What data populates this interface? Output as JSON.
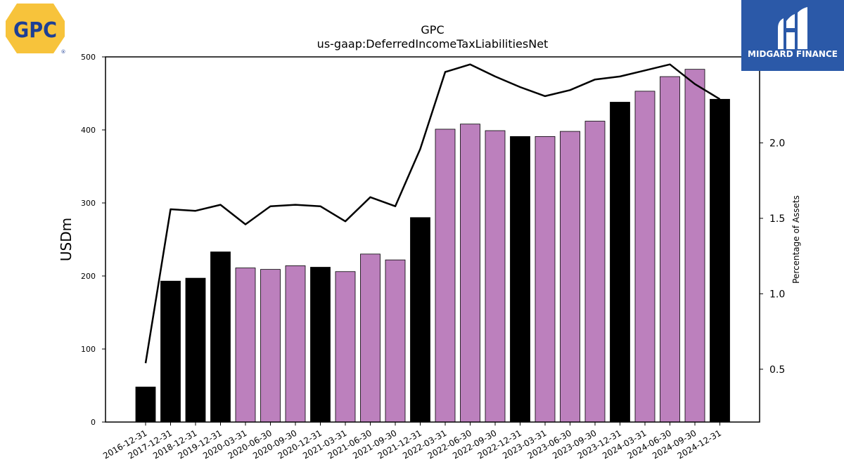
{
  "logos": {
    "company": {
      "text": "GPC",
      "registered": "®",
      "bg": "#f7c33b",
      "fg": "#1d3f95"
    },
    "brand": {
      "text": "MIDGARD FINANCE",
      "bg": "#2b59a8",
      "fg": "#ffffff"
    }
  },
  "chart_data": {
    "type": "bar",
    "title": "GPC",
    "subtitle": "us-gaap:DeferredIncomeTaxLiabilitiesNet",
    "ylabel": "USDm",
    "y2label": "Percentage of Assets",
    "ylim": [
      0,
      500
    ],
    "y2lim": [
      0.15,
      2.57
    ],
    "yticks": [
      0,
      100,
      200,
      300,
      400,
      500
    ],
    "y2ticks": [
      0.5,
      1.0,
      1.5,
      2.0,
      2.5
    ],
    "grid": false,
    "colors": {
      "annual": "#000000",
      "quarterly": "#bc80bd",
      "line": "#000000"
    },
    "categories": [
      "2016-12-31",
      "2017-12-31",
      "2018-12-31",
      "2019-12-31",
      "2020-03-31",
      "2020-06-30",
      "2020-09-30",
      "2020-12-31",
      "2021-03-31",
      "2021-06-30",
      "2021-09-30",
      "2021-12-31",
      "2022-03-31",
      "2022-06-30",
      "2022-09-30",
      "2022-12-31",
      "2023-03-31",
      "2023-06-30",
      "2023-09-30",
      "2023-12-31",
      "2024-03-31",
      "2024-06-30",
      "2024-09-30",
      "2024-12-31"
    ],
    "bar_kind": [
      "annual",
      "annual",
      "annual",
      "annual",
      "quarterly",
      "quarterly",
      "quarterly",
      "annual",
      "quarterly",
      "quarterly",
      "quarterly",
      "annual",
      "quarterly",
      "quarterly",
      "quarterly",
      "annual",
      "quarterly",
      "quarterly",
      "quarterly",
      "annual",
      "quarterly",
      "quarterly",
      "quarterly",
      "annual"
    ],
    "series": [
      {
        "values": [
          48,
          193,
          197,
          233,
          211,
          209,
          214,
          212,
          206,
          230,
          222,
          280,
          401,
          408,
          399,
          391,
          391,
          398,
          412,
          438,
          453,
          473,
          483,
          442
        ]
      },
      {
        "axis": "right",
        "type": "line",
        "values": [
          0.54,
          1.56,
          1.55,
          1.59,
          1.46,
          1.58,
          1.59,
          1.58,
          1.48,
          1.64,
          1.58,
          1.96,
          2.47,
          2.52,
          2.44,
          2.37,
          2.31,
          2.35,
          2.42,
          2.44,
          2.48,
          2.52,
          2.39,
          2.29
        ]
      }
    ]
  }
}
